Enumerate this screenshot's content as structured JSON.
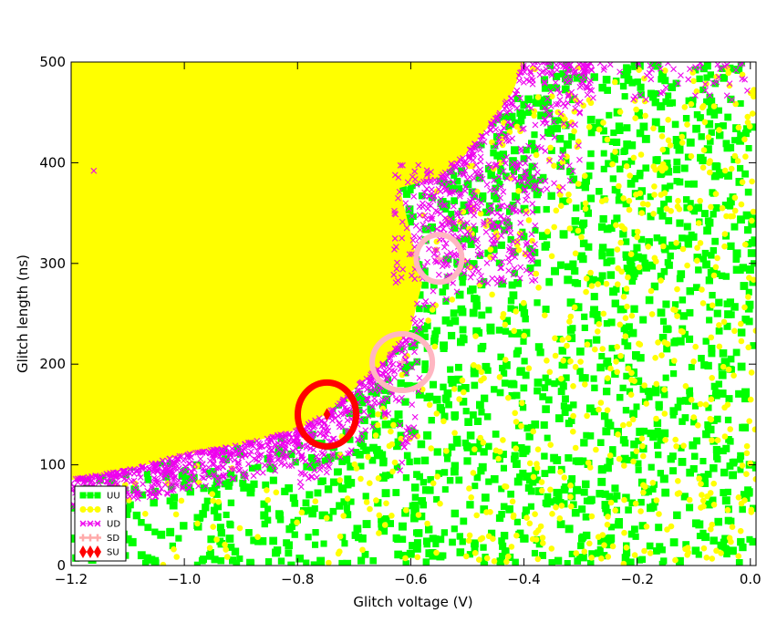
{
  "chart_data": {
    "type": "scatter",
    "title": "",
    "xlabel": "Glitch voltage (V)",
    "ylabel": "Glitch length (ns)",
    "xlim": [
      -1.2,
      0.01
    ],
    "ylim": [
      0,
      500
    ],
    "xticks": [
      -1.2,
      -1.0,
      -0.8,
      -0.6,
      -0.4,
      -0.2,
      0.0
    ],
    "xtick_labels": [
      "−1.2",
      "−1.0",
      "−0.8",
      "−0.6",
      "−0.4",
      "−0.2",
      "0.0"
    ],
    "yticks": [
      0,
      100,
      200,
      300,
      400,
      500
    ],
    "ytick_labels": [
      "0",
      "100",
      "200",
      "300",
      "400",
      "500"
    ],
    "grid": false,
    "legend_position": "lower-left",
    "background_region": {
      "description": "saturated R region filling the upper-left of the plot",
      "color": "#ffff00",
      "boundary": [
        {
          "x": -1.2,
          "y": 85
        },
        {
          "x": -1.1,
          "y": 95
        },
        {
          "x": -1.0,
          "y": 110
        },
        {
          "x": -0.9,
          "y": 120
        },
        {
          "x": -0.8,
          "y": 135
        },
        {
          "x": -0.75,
          "y": 150
        },
        {
          "x": -0.7,
          "y": 175
        },
        {
          "x": -0.65,
          "y": 200
        },
        {
          "x": -0.6,
          "y": 235
        },
        {
          "x": -0.58,
          "y": 280
        },
        {
          "x": -0.6,
          "y": 330
        },
        {
          "x": -0.62,
          "y": 375
        },
        {
          "x": -0.55,
          "y": 385
        },
        {
          "x": -0.5,
          "y": 410
        },
        {
          "x": -0.45,
          "y": 445
        },
        {
          "x": -0.42,
          "y": 470
        },
        {
          "x": -0.4,
          "y": 500
        }
      ]
    },
    "series": [
      {
        "name": "UU",
        "marker": "square",
        "color": "#00ff00",
        "description": "dense coverage everywhere below the yellow boundary"
      },
      {
        "name": "R",
        "marker": "circle",
        "color": "#ffff00",
        "description": "scattered points throughout the green region, denser at x > -0.3"
      },
      {
        "name": "UD",
        "marker": "x",
        "color": "#ee00ee",
        "description": "band along the yellow/green boundary"
      },
      {
        "name": "SD",
        "marker": "plus",
        "color": "#ffaaaa",
        "points": [
          {
            "x": -0.55,
            "y": 305
          },
          {
            "x": -0.615,
            "y": 202
          }
        ]
      },
      {
        "name": "SU",
        "marker": "diamond",
        "color": "#ff0000",
        "points": [
          {
            "x": -0.748,
            "y": 150
          }
        ]
      }
    ],
    "annotations": [
      {
        "type": "circle",
        "color": "#ffb6c1",
        "center": {
          "x": -0.55,
          "y": 305
        }
      },
      {
        "type": "circle",
        "color": "#ffb6c1",
        "center": {
          "x": -0.615,
          "y": 202
        }
      },
      {
        "type": "circle",
        "color": "#ff0000",
        "center": {
          "x": -0.748,
          "y": 150
        }
      }
    ],
    "outlier_points": [
      {
        "series": "UD",
        "x": -1.16,
        "y": 392
      }
    ]
  }
}
